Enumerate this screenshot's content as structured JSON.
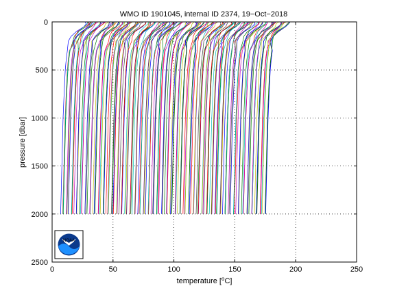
{
  "chart_data": {
    "type": "line",
    "title": "WMO ID 1901045, internal ID 2374, 19−Oct−2018",
    "xlabel_pre": "temperature [",
    "xlabel_sup": "o",
    "xlabel_post": "C]",
    "ylabel": "pressure [dbar]",
    "xlim": [
      0,
      250
    ],
    "ylim": [
      2500,
      0
    ],
    "y_reversed": true,
    "grid": true,
    "legend": "none",
    "xticks": [
      0,
      50,
      100,
      150,
      200,
      250
    ],
    "yticks": [
      0,
      500,
      1000,
      1500,
      2000,
      2500
    ],
    "xtick_labels": [
      "0",
      "50",
      "100",
      "150",
      "200",
      "250"
    ],
    "ytick_labels": [
      "0",
      "500",
      "1000",
      "1500",
      "2000",
      "2500"
    ],
    "profiles": {
      "description_series": "stacked temperature profiles, each successive profile offset in temperature",
      "count": 170,
      "first_surface_temperature": 27,
      "surface_temperature_step": 1.0,
      "profile_shape": {
        "pressure": [
          0,
          20,
          50,
          100,
          150,
          200,
          300,
          400,
          500,
          700,
          1000,
          1500,
          2000
        ],
        "temperature_anomaly": [
          0,
          -1,
          -3,
          -8,
          -11,
          -13,
          -14.5,
          -15.5,
          -16.2,
          -17,
          -18,
          -19,
          -20
        ]
      },
      "max_pressure": 2000
    },
    "colors": [
      "#0000ff",
      "#008000",
      "#ff0000",
      "#00bfbf",
      "#bf00bf",
      "#bfbf00",
      "#404040"
    ]
  },
  "logo": {
    "text": "NOAA"
  }
}
